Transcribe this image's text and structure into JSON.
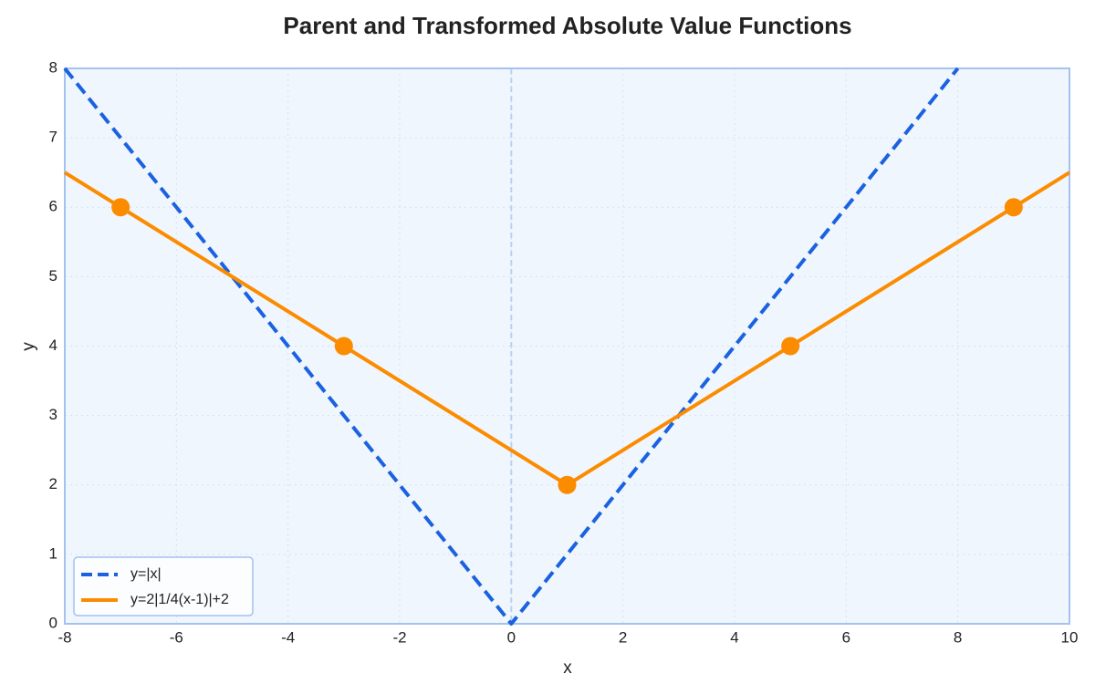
{
  "chart_data": {
    "type": "line",
    "title": "Parent and Transformed Absolute Value Functions",
    "x_label": "x",
    "y_label": "y",
    "xlim": [
      -8,
      10
    ],
    "xticks": [
      -8,
      -6,
      -4,
      -2,
      0,
      2,
      4,
      6,
      8,
      10
    ],
    "ylim": [
      0,
      8
    ],
    "yticks": [
      0,
      1,
      2,
      3,
      4,
      5,
      6,
      7,
      8
    ],
    "grid": true,
    "vline": 0,
    "legend": "lower left",
    "series": [
      {
        "name": "y=|x|",
        "color": "#1a62e0",
        "dashed": true,
        "x": [
          -8,
          0,
          8
        ],
        "values": [
          8,
          0,
          8
        ]
      },
      {
        "name": "y=2|1/4(x-1)|+2",
        "color": "#fb8c00",
        "dashed": false,
        "x": [
          -8,
          -7,
          -3,
          1,
          5,
          9,
          10
        ],
        "values": [
          6.5,
          6,
          4,
          2,
          4,
          6,
          6.5
        ],
        "markers": {
          "x": [
            -7,
            -3,
            1,
            5,
            9
          ],
          "values": [
            6,
            4,
            2,
            4,
            6
          ]
        }
      }
    ]
  }
}
